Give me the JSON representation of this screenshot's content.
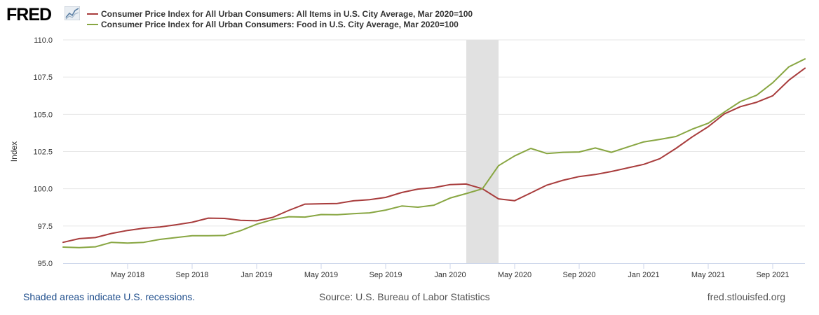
{
  "header": {
    "logo_text": "FRED",
    "logo_icon": "fred-chart-icon"
  },
  "footer": {
    "recession_note": "Shaded areas indicate U.S. recessions.",
    "source": "Source: U.S. Bureau of Labor Statistics",
    "site": "fred.stlouisfed.org"
  },
  "chart_data": {
    "type": "line",
    "ylabel": "Index",
    "ylim": [
      95.0,
      110.0
    ],
    "y_ticks": [
      "95.0",
      "97.5",
      "100.0",
      "102.5",
      "105.0",
      "107.5",
      "110.0"
    ],
    "x_ticks": [
      "May 2018",
      "Sep 2018",
      "Jan 2019",
      "May 2019",
      "Sep 2019",
      "Jan 2020",
      "May 2020",
      "Sep 2020",
      "Jan 2021",
      "May 2021",
      "Sep 2021"
    ],
    "x_range": [
      "2018-01",
      "2021-11"
    ],
    "recession": {
      "start": "2020-02",
      "end": "2020-04"
    },
    "grid": "horizontal",
    "legend_position": "top-left",
    "x": [
      "2018-01",
      "2018-02",
      "2018-03",
      "2018-04",
      "2018-05",
      "2018-06",
      "2018-07",
      "2018-08",
      "2018-09",
      "2018-10",
      "2018-11",
      "2018-12",
      "2019-01",
      "2019-02",
      "2019-03",
      "2019-04",
      "2019-05",
      "2019-06",
      "2019-07",
      "2019-08",
      "2019-09",
      "2019-10",
      "2019-11",
      "2019-12",
      "2020-01",
      "2020-02",
      "2020-03",
      "2020-04",
      "2020-05",
      "2020-06",
      "2020-07",
      "2020-08",
      "2020-09",
      "2020-10",
      "2020-11",
      "2020-12",
      "2021-01",
      "2021-02",
      "2021-03",
      "2021-04",
      "2021-05",
      "2021-06",
      "2021-07",
      "2021-08",
      "2021-09",
      "2021-10",
      "2021-11"
    ],
    "series": [
      {
        "name": "Consumer Price Index for All Urban Consumers: All Items in U.S. City Average, Mar 2020=100",
        "color": "#a83c3c",
        "values": [
          96.4,
          96.65,
          96.72,
          97.0,
          97.2,
          97.35,
          97.43,
          97.58,
          97.75,
          98.03,
          98.01,
          97.88,
          97.85,
          98.08,
          98.55,
          98.97,
          98.99,
          99.01,
          99.19,
          99.27,
          99.42,
          99.75,
          99.98,
          100.08,
          100.28,
          100.32,
          100.0,
          99.32,
          99.2,
          99.72,
          100.25,
          100.57,
          100.82,
          100.96,
          101.16,
          101.4,
          101.64,
          102.02,
          102.71,
          103.48,
          104.17,
          105.03,
          105.52,
          105.81,
          106.25,
          107.29,
          108.1
        ]
      },
      {
        "name": "Consumer Price Index for All Urban Consumers: Food in U.S. City Average, Mar 2020=100",
        "color": "#88a642",
        "values": [
          96.08,
          96.05,
          96.1,
          96.4,
          96.35,
          96.4,
          96.6,
          96.72,
          96.85,
          96.85,
          96.86,
          97.18,
          97.62,
          97.93,
          98.12,
          98.1,
          98.27,
          98.26,
          98.33,
          98.38,
          98.57,
          98.84,
          98.76,
          98.9,
          99.38,
          99.68,
          100.0,
          101.55,
          102.21,
          102.71,
          102.37,
          102.45,
          102.47,
          102.74,
          102.45,
          102.8,
          103.15,
          103.32,
          103.51,
          104.0,
          104.4,
          105.15,
          105.86,
          106.28,
          107.12,
          108.19,
          108.72
        ]
      }
    ]
  }
}
